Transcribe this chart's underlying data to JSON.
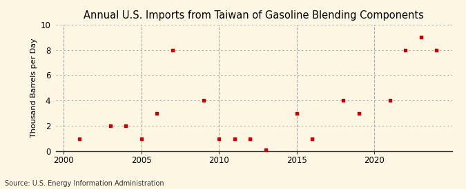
{
  "title": "Annual U.S. Imports from Taiwan of Gasoline Blending Components",
  "ylabel": "Thousand Barrels per Day",
  "source": "Source: U.S. Energy Information Administration",
  "bg_color": "#fdf6e3",
  "plot_bg_color": "#ffffff",
  "marker_color": "#cc0000",
  "h_grid_color": "#aaaaaa",
  "v_grid_color": "#aaaaaa",
  "xlim": [
    1999.5,
    2025
  ],
  "ylim": [
    0,
    10
  ],
  "yticks": [
    0,
    2,
    4,
    6,
    8,
    10
  ],
  "xticks": [
    2000,
    2005,
    2010,
    2015,
    2020
  ],
  "data": {
    "years": [
      2001,
      2003,
      2004,
      2005,
      2006,
      2007,
      2009,
      2010,
      2011,
      2012,
      2013,
      2015,
      2016,
      2018,
      2019,
      2021,
      2022,
      2023,
      2024
    ],
    "values": [
      1,
      2,
      2,
      1,
      3,
      8,
      4,
      1,
      1,
      1,
      0.1,
      3,
      1,
      4,
      3,
      4,
      8,
      9,
      8
    ]
  }
}
